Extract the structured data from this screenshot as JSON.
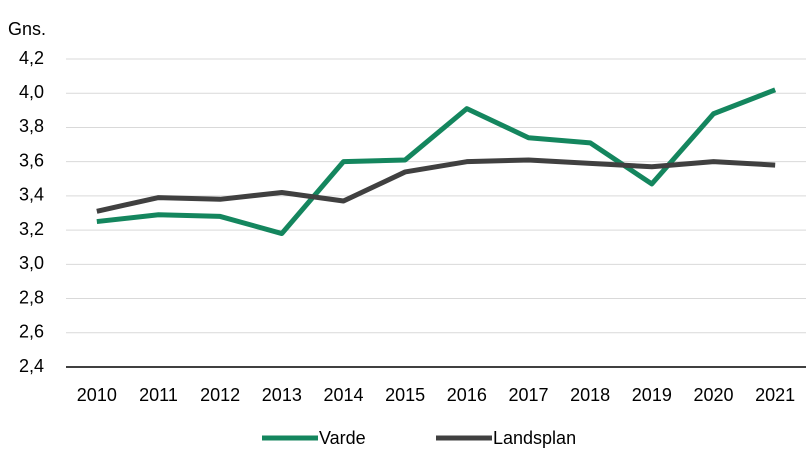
{
  "chart_data": {
    "type": "line",
    "ylabel": "Gns.",
    "categories": [
      "2010",
      "2011",
      "2012",
      "2013",
      "2014",
      "2015",
      "2016",
      "2017",
      "2018",
      "2019",
      "2020",
      "2021"
    ],
    "series": [
      {
        "name": "Varde",
        "color": "#14865e",
        "values": [
          3.25,
          3.29,
          3.28,
          3.18,
          3.6,
          3.61,
          3.91,
          3.74,
          3.71,
          3.47,
          3.88,
          4.02
        ]
      },
      {
        "name": "Landsplan",
        "color": "#404040",
        "values": [
          3.31,
          3.39,
          3.38,
          3.42,
          3.37,
          3.54,
          3.6,
          3.61,
          3.59,
          3.57,
          3.6,
          3.58
        ]
      }
    ],
    "ylim": [
      2.4,
      4.2
    ],
    "yticks": [
      {
        "value": 2.4,
        "label": "2,4"
      },
      {
        "value": 2.6,
        "label": "2,6"
      },
      {
        "value": 2.8,
        "label": "2,8"
      },
      {
        "value": 3.0,
        "label": "3,0"
      },
      {
        "value": 3.2,
        "label": "3,2"
      },
      {
        "value": 3.4,
        "label": "3,4"
      },
      {
        "value": 3.6,
        "label": "3,6"
      },
      {
        "value": 3.8,
        "label": "3,8"
      },
      {
        "value": 4.0,
        "label": "4,0"
      },
      {
        "value": 4.2,
        "label": "4,2"
      }
    ],
    "grid": true,
    "legend": "bottom"
  }
}
